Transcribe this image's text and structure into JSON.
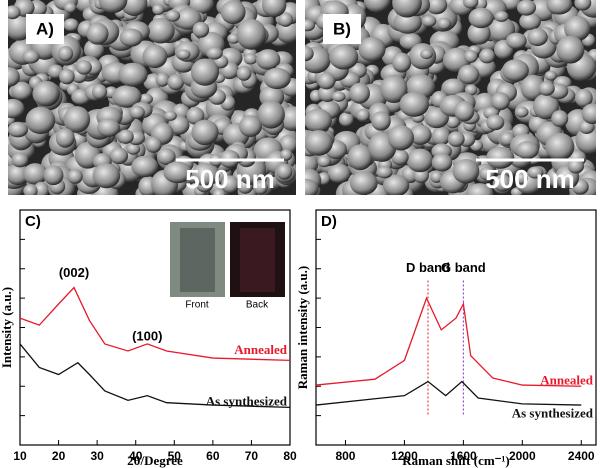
{
  "panels": [
    {
      "label": "A)",
      "scale_bar": "500 nm"
    },
    {
      "label": "B)",
      "scale_bar": "500 nm"
    }
  ],
  "chart_data": [
    {
      "type": "line",
      "panel_label": "C)",
      "x_label": "2θ/Degree",
      "y_label": "Intensity (a.u.)",
      "xlim": [
        10,
        80
      ],
      "ylim": [
        0,
        100
      ],
      "xticks": [
        10,
        20,
        30,
        40,
        50,
        60,
        70,
        80
      ],
      "series": [
        {
          "name": "Annealed",
          "color": "#e8192c",
          "x": [
            10,
            15,
            20,
            24,
            28,
            32,
            38,
            43,
            48,
            60,
            80
          ],
          "values": [
            54,
            51,
            60,
            67,
            53,
            43,
            40,
            43,
            40,
            37,
            36
          ]
        },
        {
          "name": "As synthesized",
          "color": "#111111",
          "x": [
            10,
            15,
            20,
            25,
            28,
            32,
            38,
            43,
            48,
            60,
            80
          ],
          "values": [
            43,
            33,
            30,
            35,
            30,
            23,
            19,
            21,
            18,
            17,
            16
          ]
        }
      ],
      "annotations": [
        "(002)",
        "(100)"
      ],
      "inset_labels": [
        "Front",
        "Back"
      ]
    },
    {
      "type": "line",
      "panel_label": "D)",
      "x_label": "Raman shift (cm⁻¹)",
      "y_label": "Raman intensity (a.u.)",
      "xlim": [
        600,
        2500
      ],
      "ylim": [
        0,
        100
      ],
      "xticks": [
        800,
        1200,
        1600,
        2000,
        2400
      ],
      "series": [
        {
          "name": "Annealed",
          "color": "#e8192c",
          "x": [
            600,
            1000,
            1200,
            1350,
            1450,
            1550,
            1600,
            1650,
            1800,
            2000,
            2400
          ],
          "values": [
            25.5,
            28,
            36,
            62.5,
            49,
            54,
            60,
            38,
            28.5,
            25.5,
            25
          ]
        },
        {
          "name": "As synthesized",
          "color": "#111111",
          "x": [
            600,
            1200,
            1360,
            1480,
            1590,
            1700,
            2000,
            2400
          ],
          "values": [
            17,
            21,
            27,
            21,
            27,
            20,
            17.5,
            17
          ]
        }
      ],
      "reference_lines": [
        1360,
        1600
      ],
      "annotations": [
        "D band",
        "G band"
      ]
    }
  ]
}
